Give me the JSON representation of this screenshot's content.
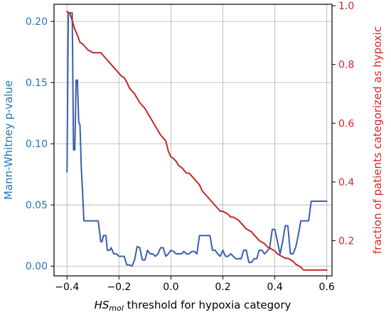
{
  "chart_data": {
    "type": "line",
    "xlabel": {
      "italic": "HS",
      "subscript": "mol",
      "rest": " threshold for hypoxia category"
    },
    "xlim": [
      -0.45,
      0.62
    ],
    "x_ticks": [
      -0.4,
      -0.2,
      0.0,
      0.2,
      0.4,
      0.6
    ],
    "x_tick_labels": [
      "−0.4",
      "−0.2",
      "0.0",
      "0.2",
      "0.4",
      "0.6"
    ],
    "grid": true,
    "y_left": {
      "label": "Mann-Whitney p-value",
      "lim": [
        -0.008,
        0.214
      ],
      "ticks": [
        0.0,
        0.05,
        0.1,
        0.15,
        0.2
      ],
      "tick_labels": [
        "0.00",
        "0.05",
        "0.10",
        "0.15",
        "0.20"
      ],
      "color": "#1f77b4"
    },
    "y_right": {
      "label": "fraction of patients categorized as hypoxic",
      "lim": [
        0.08,
        1.005
      ],
      "ticks": [
        0.2,
        0.4,
        0.6,
        0.8,
        1.0
      ],
      "tick_labels": [
        "0.2",
        "0.4",
        "0.6",
        "0.8",
        "1.0"
      ],
      "color": "#d62728"
    },
    "series": [
      {
        "axis": "left",
        "color": "#3a5fb0",
        "x": [
          -0.4,
          -0.395,
          -0.39,
          -0.385,
          -0.38,
          -0.375,
          -0.37,
          -0.365,
          -0.36,
          -0.355,
          -0.35,
          -0.345,
          -0.34,
          -0.335,
          -0.33,
          -0.325,
          -0.32,
          -0.31,
          -0.3,
          -0.29,
          -0.28,
          -0.27,
          -0.265,
          -0.26,
          -0.25,
          -0.245,
          -0.24,
          -0.235,
          -0.23,
          -0.22,
          -0.21,
          -0.2,
          -0.19,
          -0.18,
          -0.17,
          -0.16,
          -0.15,
          -0.14,
          -0.13,
          -0.12,
          -0.11,
          -0.1,
          -0.09,
          -0.08,
          -0.07,
          -0.06,
          -0.05,
          -0.04,
          -0.03,
          -0.02,
          -0.01,
          0.0,
          0.01,
          0.02,
          0.03,
          0.04,
          0.05,
          0.06,
          0.07,
          0.08,
          0.09,
          0.1,
          0.11,
          0.12,
          0.13,
          0.14,
          0.15,
          0.16,
          0.17,
          0.18,
          0.19,
          0.2,
          0.21,
          0.22,
          0.23,
          0.24,
          0.25,
          0.26,
          0.27,
          0.28,
          0.29,
          0.3,
          0.31,
          0.32,
          0.33,
          0.34,
          0.35,
          0.36,
          0.37,
          0.38,
          0.39,
          0.4,
          0.41,
          0.42,
          0.43,
          0.44,
          0.45,
          0.46,
          0.47,
          0.48,
          0.49,
          0.5,
          0.51,
          0.52,
          0.53,
          0.54,
          0.55,
          0.56,
          0.57,
          0.58,
          0.59,
          0.6
        ],
        "values": [
          0.077,
          0.207,
          0.207,
          0.207,
          0.207,
          0.095,
          0.095,
          0.152,
          0.152,
          0.118,
          0.115,
          0.08,
          0.06,
          0.037,
          0.037,
          0.037,
          0.037,
          0.037,
          0.037,
          0.037,
          0.037,
          0.02,
          0.02,
          0.025,
          0.025,
          0.013,
          0.013,
          0.013,
          0.015,
          0.01,
          0.01,
          0.008,
          0.008,
          0.008,
          0.001,
          0.001,
          0.0,
          0.005,
          0.016,
          0.015,
          0.005,
          0.005,
          0.013,
          0.01,
          0.01,
          0.008,
          0.01,
          0.015,
          0.015,
          0.008,
          0.01,
          0.013,
          0.012,
          0.01,
          0.01,
          0.01,
          0.012,
          0.01,
          0.01,
          0.012,
          0.012,
          0.01,
          0.025,
          0.025,
          0.025,
          0.025,
          0.025,
          0.013,
          0.013,
          0.01,
          0.008,
          0.013,
          0.008,
          0.008,
          0.01,
          0.008,
          0.006,
          0.006,
          0.006,
          0.013,
          0.013,
          0.003,
          0.003,
          0.006,
          0.006,
          0.013,
          0.013,
          0.01,
          0.012,
          0.015,
          0.03,
          0.03,
          0.02,
          0.01,
          0.02,
          0.033,
          0.033,
          0.01,
          0.01,
          0.015,
          0.025,
          0.037,
          0.037,
          0.037,
          0.037,
          0.053,
          0.053,
          0.053,
          0.053,
          0.053,
          0.053,
          0.053
        ]
      },
      {
        "axis": "right",
        "color": "#c62828",
        "x": [
          -0.4,
          -0.39,
          -0.38,
          -0.37,
          -0.36,
          -0.35,
          -0.34,
          -0.33,
          -0.32,
          -0.31,
          -0.3,
          -0.29,
          -0.28,
          -0.27,
          -0.26,
          -0.25,
          -0.24,
          -0.23,
          -0.22,
          -0.21,
          -0.2,
          -0.19,
          -0.18,
          -0.17,
          -0.16,
          -0.15,
          -0.14,
          -0.13,
          -0.12,
          -0.11,
          -0.1,
          -0.09,
          -0.08,
          -0.07,
          -0.06,
          -0.05,
          -0.04,
          -0.03,
          -0.02,
          -0.01,
          0.0,
          0.01,
          0.02,
          0.03,
          0.04,
          0.05,
          0.06,
          0.07,
          0.08,
          0.09,
          0.1,
          0.11,
          0.12,
          0.13,
          0.14,
          0.15,
          0.16,
          0.17,
          0.18,
          0.19,
          0.2,
          0.21,
          0.22,
          0.23,
          0.24,
          0.25,
          0.26,
          0.27,
          0.28,
          0.29,
          0.3,
          0.31,
          0.32,
          0.33,
          0.34,
          0.35,
          0.36,
          0.37,
          0.38,
          0.39,
          0.4,
          0.41,
          0.42,
          0.43,
          0.44,
          0.45,
          0.46,
          0.47,
          0.48,
          0.49,
          0.5,
          0.51,
          0.52,
          0.53,
          0.54,
          0.55,
          0.56,
          0.57,
          0.58,
          0.59,
          0.6
        ],
        "values": [
          0.98,
          0.975,
          0.95,
          0.92,
          0.9,
          0.875,
          0.87,
          0.86,
          0.85,
          0.845,
          0.84,
          0.84,
          0.84,
          0.84,
          0.83,
          0.82,
          0.81,
          0.8,
          0.79,
          0.78,
          0.77,
          0.76,
          0.755,
          0.74,
          0.72,
          0.71,
          0.7,
          0.685,
          0.67,
          0.66,
          0.65,
          0.635,
          0.62,
          0.605,
          0.59,
          0.575,
          0.56,
          0.55,
          0.54,
          0.505,
          0.485,
          0.48,
          0.47,
          0.455,
          0.45,
          0.44,
          0.43,
          0.43,
          0.42,
          0.41,
          0.4,
          0.39,
          0.37,
          0.36,
          0.35,
          0.34,
          0.33,
          0.32,
          0.31,
          0.3,
          0.3,
          0.295,
          0.29,
          0.28,
          0.28,
          0.275,
          0.27,
          0.26,
          0.25,
          0.24,
          0.235,
          0.23,
          0.22,
          0.21,
          0.2,
          0.195,
          0.19,
          0.18,
          0.175,
          0.17,
          0.165,
          0.155,
          0.15,
          0.145,
          0.14,
          0.14,
          0.135,
          0.13,
          0.12,
          0.115,
          0.11,
          0.1,
          0.1,
          0.1,
          0.1,
          0.1,
          0.1,
          0.1,
          0.1,
          0.1,
          0.1
        ]
      }
    ]
  }
}
